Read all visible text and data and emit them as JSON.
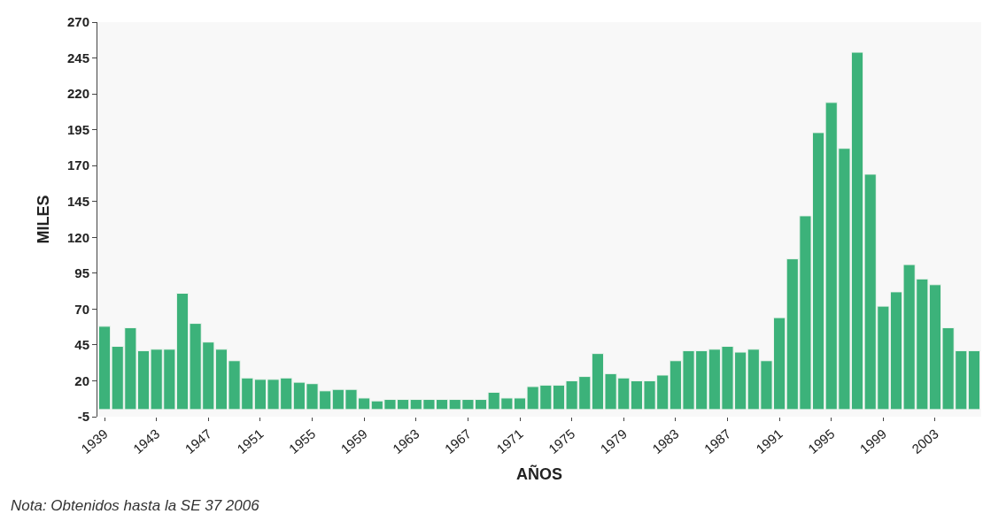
{
  "chart_data": {
    "type": "bar",
    "xlabel": "AÑOS",
    "ylabel": "MILES",
    "categories": [
      "1939",
      null,
      null,
      null,
      "1943",
      null,
      null,
      null,
      "1947",
      null,
      null,
      null,
      "1951",
      null,
      null,
      null,
      "1955",
      null,
      null,
      null,
      "1959",
      null,
      null,
      null,
      "1963",
      null,
      null,
      null,
      "1967",
      null,
      null,
      null,
      "1971",
      null,
      null,
      null,
      "1975",
      null,
      null,
      null,
      "1979",
      null,
      null,
      null,
      "1983",
      null,
      null,
      null,
      "1987",
      null,
      null,
      null,
      "1991",
      null,
      null,
      null,
      "1995",
      null,
      null,
      null,
      "1999",
      null,
      null,
      null,
      "2003",
      null,
      null,
      null
    ],
    "values": [
      58,
      44,
      57,
      41,
      42,
      42,
      81,
      60,
      47,
      42,
      34,
      22,
      21,
      21,
      22,
      19,
      18,
      13,
      14,
      14,
      8,
      6,
      7,
      7,
      7,
      7,
      7,
      7,
      7,
      7,
      12,
      8,
      8,
      16,
      17,
      17,
      20,
      23,
      39,
      25,
      22,
      20,
      20,
      24,
      34,
      41,
      41,
      42,
      44,
      40,
      42,
      34,
      64,
      105,
      135,
      193,
      214,
      182,
      249,
      164,
      72,
      82,
      101,
      91,
      87,
      57,
      41,
      41
    ],
    "color": "#3cb27a",
    "ylim": [
      -5,
      270
    ],
    "yticks": [
      -5,
      20,
      45,
      70,
      95,
      120,
      145,
      170,
      195,
      220,
      245,
      270
    ],
    "grid": false,
    "legend": false,
    "annotations": [
      "Nota: Obtenidos hasta la SE 37 2006"
    ]
  }
}
